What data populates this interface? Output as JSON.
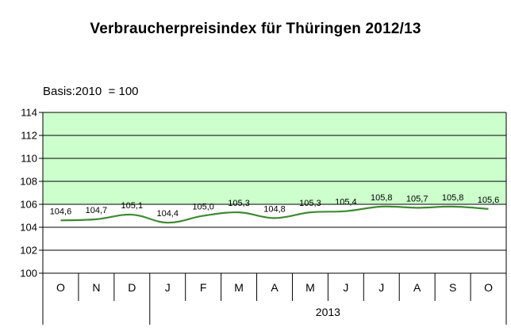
{
  "chart_data": {
    "type": "line",
    "title": "Verbraucherpreisindex für Thüringen 2012/13",
    "subtitle": "Basis:2010  = 100",
    "categories": [
      "O",
      "N",
      "D",
      "J",
      "F",
      "M",
      "A",
      "M",
      "J",
      "J",
      "A",
      "S",
      "O"
    ],
    "x_group_labels": [
      {
        "label": "2013",
        "from_index": 3,
        "to_index": 12
      }
    ],
    "series": [
      {
        "values": [
          104.6,
          104.7,
          105.1,
          104.4,
          105.0,
          105.3,
          104.8,
          105.3,
          105.4,
          105.8,
          105.7,
          105.8,
          105.6
        ],
        "data_labels": [
          "104,6",
          "104,7",
          "105,1",
          "104,4",
          "105,0",
          "105,3",
          "104,8",
          "105,3",
          "105,4",
          "105,8",
          "105,7",
          "105,8",
          "105,6"
        ],
        "color": "#3f8a32"
      }
    ],
    "ylim": [
      100,
      114
    ],
    "y_ticks": [
      "100",
      "102",
      "104",
      "106",
      "108",
      "110",
      "112",
      "114"
    ],
    "xlabel": "",
    "ylabel": "",
    "grid": true,
    "legend": "none",
    "colors": {
      "plot_background": "#ffffff",
      "band_background": "#ccffcc",
      "gridline": "#000000",
      "line": "#3f8a32"
    }
  }
}
